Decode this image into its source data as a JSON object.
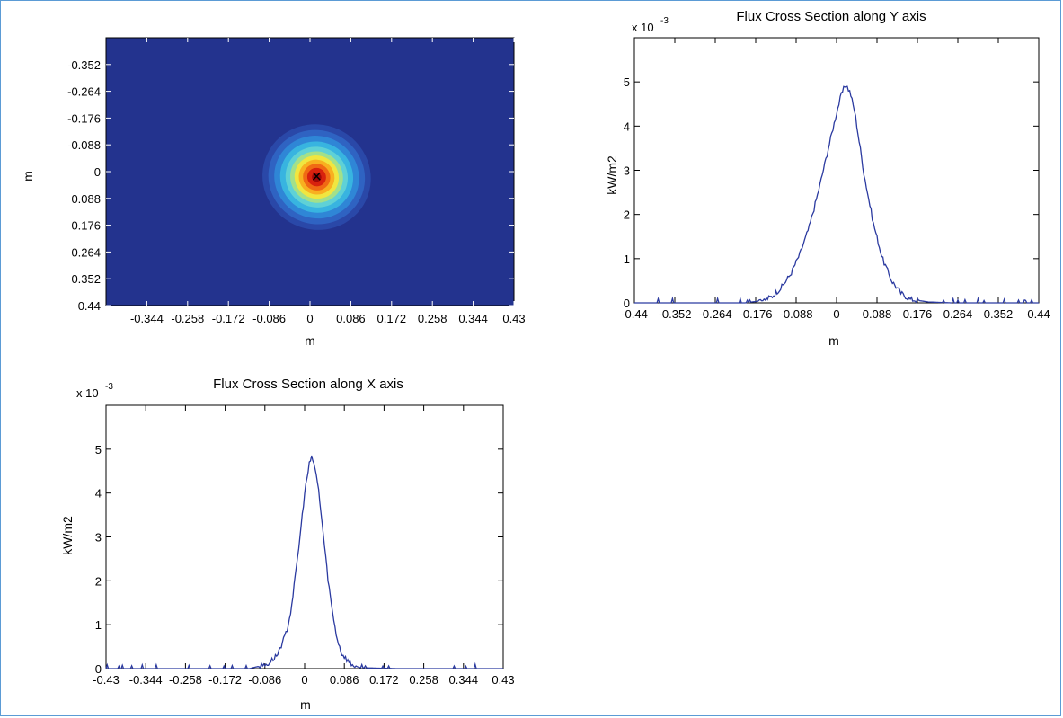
{
  "colors": {
    "frame": "#5b9bd5",
    "line": "#2b3aa0",
    "axis": "#000000",
    "heatmap_bg": "#23338e"
  },
  "heatmap": {
    "xlabel": "m",
    "ylabel": "m",
    "x_tick_labels": [
      "-0.344",
      "-0.258",
      "-0.172",
      "-0.086",
      "0",
      "0.086",
      "0.172",
      "0.258",
      "0.344",
      "0.43"
    ],
    "y_tick_labels": [
      "-0.352",
      "-0.264",
      "-0.176",
      "-0.088",
      "0",
      "0.088",
      "0.176",
      "0.264",
      "0.352",
      "0.44"
    ],
    "marker": "×"
  },
  "chart_data": [
    {
      "type": "heatmap",
      "title": "",
      "xlabel": "m",
      "ylabel": "m",
      "xlim": [
        -0.43,
        0.43
      ],
      "ylim": [
        -0.44,
        0.44
      ],
      "y_reversed": true,
      "colormap": "jet",
      "peak": {
        "x": 0.014,
        "y": 0.018
      },
      "spread": {
        "sx": 0.05,
        "sy": 0.075,
        "rotation_deg": 25
      },
      "peak_marker": "×"
    },
    {
      "type": "line",
      "title": "Flux Cross Section along Y axis",
      "xlabel": "m",
      "ylabel": "kW/m2",
      "y_scale_label": "x 10",
      "y_scale_exponent": "-3",
      "xlim": [
        -0.44,
        0.44
      ],
      "ylim": [
        0,
        6
      ],
      "x_tick_labels": [
        "-0.44",
        "-0.352",
        "-0.264",
        "-0.176",
        "-0.088",
        "0",
        "0.088",
        "0.176",
        "0.264",
        "0.352",
        "0.44"
      ],
      "y_ticks": [
        0,
        1,
        2,
        3,
        4,
        5
      ],
      "series": [
        {
          "x": [
            -0.44,
            -0.36,
            -0.3,
            -0.24,
            -0.2,
            -0.16,
            -0.14,
            -0.12,
            -0.1,
            -0.08,
            -0.06,
            -0.04,
            -0.02,
            0.0,
            0.01,
            0.02,
            0.03,
            0.04,
            0.05,
            0.06,
            0.08,
            0.1,
            0.12,
            0.14,
            0.16,
            0.2,
            0.25,
            0.3,
            0.36,
            0.44
          ],
          "y": [
            0,
            0,
            0,
            0,
            0,
            0.05,
            0.15,
            0.35,
            0.65,
            1.1,
            1.7,
            2.5,
            3.4,
            4.3,
            4.7,
            4.95,
            4.75,
            4.3,
            3.6,
            2.9,
            1.8,
            1.0,
            0.5,
            0.22,
            0.08,
            0.02,
            0,
            0,
            0,
            0
          ]
        }
      ]
    },
    {
      "type": "line",
      "title": "Flux Cross Section along X axis",
      "xlabel": "m",
      "ylabel": "kW/m2",
      "y_scale_label": "x 10",
      "y_scale_exponent": "-3",
      "xlim": [
        -0.43,
        0.43
      ],
      "ylim": [
        0,
        6
      ],
      "x_tick_labels": [
        "-0.43",
        "-0.344",
        "-0.258",
        "-0.172",
        "-0.086",
        "0",
        "0.086",
        "0.172",
        "0.258",
        "0.344",
        "0.43"
      ],
      "y_ticks": [
        0,
        1,
        2,
        3,
        4,
        5
      ],
      "series": [
        {
          "x": [
            -0.43,
            -0.3,
            -0.2,
            -0.12,
            -0.08,
            -0.06,
            -0.04,
            -0.03,
            -0.02,
            -0.01,
            0.0,
            0.01,
            0.015,
            0.02,
            0.03,
            0.04,
            0.05,
            0.06,
            0.07,
            0.08,
            0.1,
            0.12,
            0.2,
            0.3,
            0.43
          ],
          "y": [
            0,
            0,
            0,
            0,
            0.1,
            0.3,
            0.8,
            1.3,
            2.1,
            3.0,
            4.0,
            4.65,
            4.8,
            4.7,
            4.1,
            3.1,
            2.1,
            1.3,
            0.7,
            0.35,
            0.1,
            0.02,
            0,
            0,
            0
          ]
        }
      ]
    }
  ]
}
